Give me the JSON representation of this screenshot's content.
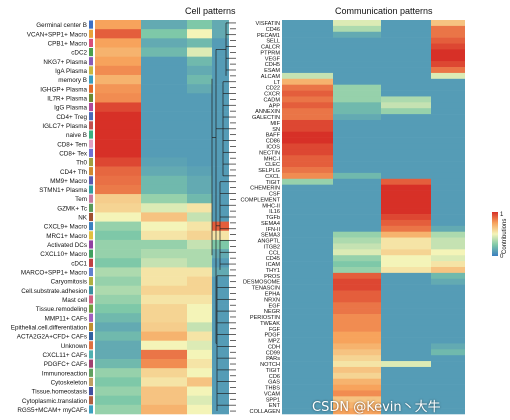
{
  "chart_data": [
    {
      "type": "heatmap",
      "title": "Cell patterns",
      "rows": [
        "Germinal center B",
        "VCAN+SPP1+ Macro",
        "CPB1+ Macro",
        "cDC2",
        "NKG7+ Plasma",
        "IgA Plasma",
        "memory B",
        "IGHGP+ Plasma",
        "IL7R+ Plasma",
        "IgG Plasma",
        "CD4+ Treg",
        "IGLC7+ Plasma",
        "naive B",
        "CD8+ Tem",
        "CD8+ Tex",
        "Th0",
        "CD4+ Tfh",
        "MM9+ Macro",
        "STMN1+ Plasma",
        "Tem",
        "GZMK+ Tc",
        "NK",
        "CXCL9+ Macro",
        "MRC1+ Macro",
        "Activated DCs",
        "CXCL10+ Macro",
        "cDC1",
        "MARCO+SPP1+ Macro",
        "Caryomitosis",
        "Cell.substrate.adhesion",
        "Mast cell",
        "Tissue.remodeling",
        "MMP11+ CAFs",
        "Epithelial.cell.differentiation",
        "ACTA2G2A+CFD+ CAFs",
        "Unknown",
        "CXCL11+ CAFs",
        "PDGFC+ CAFs",
        "Immunoreaction",
        "Cytoskeleton",
        "Tissue.homeostasis",
        "Cytoplasmic.translation",
        "RGS5+MCAM+ myCAFs"
      ],
      "row_colors": [
        "#3d6fc4",
        "#e8a23a",
        "#d94f7a",
        "#4aa04a",
        "#8a5ab8",
        "#c8b840",
        "#3a9fbf",
        "#e06a2a",
        "#6a8a30",
        "#b04a9a",
        "#4a6ab8",
        "#c05050",
        "#3ab080",
        "#e0a0c0",
        "#7070d0",
        "#a0a040",
        "#d08a30",
        "#5a5ab0",
        "#30a0a0",
        "#c87aa0",
        "#5a9a5a",
        "#a05030",
        "#3a80c0",
        "#e0c040",
        "#9040a0",
        "#40a060",
        "#c04040",
        "#6080d0",
        "#b0b040",
        "#3a90a0",
        "#d06080",
        "#70a040",
        "#a060c0",
        "#c09030",
        "#3060a0",
        "#e07040",
        "#50b0b0",
        "#a04070",
        "#60a060",
        "#c0a060",
        "#4050a0",
        "#b06040",
        "#3aa0c0"
      ],
      "patterns": 4,
      "values": [
        [
          0.75,
          0.15,
          0.25,
          0.15
        ],
        [
          0.9,
          0.25,
          0.5,
          0.15
        ],
        [
          0.75,
          0.15,
          0.2,
          0.1
        ],
        [
          0.7,
          0.2,
          0.45,
          0.1
        ],
        [
          0.75,
          0.1,
          0.2,
          0.1
        ],
        [
          0.8,
          0.1,
          0.15,
          0.1
        ],
        [
          0.7,
          0.1,
          0.2,
          0.1
        ],
        [
          0.78,
          0.1,
          0.15,
          0.1
        ],
        [
          0.8,
          0.1,
          0.1,
          0.1
        ],
        [
          0.95,
          0.1,
          0.1,
          0.1
        ],
        [
          1.0,
          0.1,
          0.1,
          0.1
        ],
        [
          1.0,
          0.1,
          0.1,
          0.1
        ],
        [
          1.0,
          0.1,
          0.1,
          0.1
        ],
        [
          1.0,
          0.1,
          0.1,
          0.1
        ],
        [
          1.0,
          0.1,
          0.1,
          0.1
        ],
        [
          0.95,
          0.12,
          0.1,
          0.1
        ],
        [
          0.88,
          0.15,
          0.12,
          0.1
        ],
        [
          0.86,
          0.2,
          0.15,
          0.1
        ],
        [
          0.84,
          0.2,
          0.15,
          0.1
        ],
        [
          0.62,
          0.3,
          0.2,
          0.1
        ],
        [
          0.6,
          0.45,
          0.55,
          0.1
        ],
        [
          0.5,
          0.65,
          0.4,
          0.1
        ],
        [
          0.3,
          0.5,
          0.55,
          0.9
        ],
        [
          0.25,
          0.55,
          0.6,
          0.55
        ],
        [
          0.3,
          0.3,
          0.4,
          0.25
        ],
        [
          0.3,
          0.35,
          0.35,
          0.15
        ],
        [
          0.25,
          0.4,
          0.35,
          0.1
        ],
        [
          0.35,
          0.55,
          0.55,
          0.15
        ],
        [
          0.3,
          0.55,
          0.6,
          0.1
        ],
        [
          0.35,
          0.6,
          0.6,
          0.1
        ],
        [
          0.3,
          0.55,
          0.55,
          0.1
        ],
        [
          0.25,
          0.6,
          0.5,
          0.1
        ],
        [
          0.2,
          0.6,
          0.5,
          0.1
        ],
        [
          0.15,
          0.62,
          0.4,
          0.1
        ],
        [
          0.2,
          0.7,
          0.55,
          0.1
        ],
        [
          0.15,
          0.5,
          0.45,
          0.1
        ],
        [
          0.15,
          0.85,
          0.5,
          0.1
        ],
        [
          0.2,
          0.8,
          0.55,
          0.1
        ],
        [
          0.3,
          0.6,
          0.5,
          0.1
        ],
        [
          0.25,
          0.55,
          0.65,
          0.1
        ],
        [
          0.3,
          0.65,
          0.5,
          0.1
        ],
        [
          0.25,
          0.65,
          0.45,
          0.1
        ],
        [
          0.3,
          0.7,
          0.5,
          0.1
        ]
      ]
    },
    {
      "type": "heatmap",
      "title": "Communication patterns",
      "rows": [
        "VISFATIN",
        "CD46",
        "PECAM1",
        "SELL",
        "CALCR",
        "PTPRM",
        "VEGF",
        "CDH5",
        "ESAM",
        "ALCAM",
        "LT",
        "CD22",
        "CXCR",
        "CADM",
        "APP",
        "ANNEXIN",
        "GALECTIN",
        "MIF",
        "SN",
        "BAFF",
        "CD86",
        "ICOS",
        "NECTIN",
        "MHC-I",
        "CLEC",
        "SELPLG",
        "CXCL",
        "TIGIT",
        "CHEMERIN",
        "CSF",
        "COMPLEMENT",
        "MHC-II",
        "IL16",
        "TGFb",
        "SEMA4",
        "IFN-II",
        "SEMA3",
        "ANGPTL",
        "ITGB2",
        "CCL",
        "CD45",
        "ICAM",
        "THY1",
        "PROS",
        "DESMOSOME",
        "TENASCIN",
        "EPHA",
        "NRXN",
        "EGF",
        "NEGR",
        "PERIOSTIN",
        "TWEAK",
        "FGF",
        "PDGF",
        "MPZ",
        "CDH",
        "CD99",
        "PARs",
        "NOTCH",
        "TIGIT",
        "CD6",
        "GAS",
        "THBS",
        "VCAM",
        "SPP1",
        "ENT",
        "COLLAGEN"
      ],
      "patterns": 4,
      "values": [
        [
          0.1,
          0.45,
          0.1,
          0.65
        ],
        [
          0.1,
          0.35,
          0.1,
          0.85
        ],
        [
          0.1,
          0.15,
          0.1,
          0.85
        ],
        [
          0.1,
          0.1,
          0.1,
          0.9
        ],
        [
          0.1,
          0.1,
          0.1,
          0.95
        ],
        [
          0.1,
          0.1,
          0.1,
          1.0
        ],
        [
          0.1,
          0.1,
          0.1,
          1.0
        ],
        [
          0.1,
          0.1,
          0.1,
          0.95
        ],
        [
          0.1,
          0.1,
          0.1,
          0.85
        ],
        [
          0.4,
          0.1,
          0.1,
          0.45
        ],
        [
          0.7,
          0.1,
          0.1,
          0.1
        ],
        [
          0.85,
          0.3,
          0.1,
          0.1
        ],
        [
          0.9,
          0.3,
          0.1,
          0.1
        ],
        [
          0.85,
          0.3,
          0.35,
          0.1
        ],
        [
          0.9,
          0.2,
          0.4,
          0.1
        ],
        [
          0.85,
          0.2,
          0.3,
          0.1
        ],
        [
          0.85,
          0.15,
          0.1,
          0.1
        ],
        [
          0.95,
          0.1,
          0.1,
          0.1
        ],
        [
          0.95,
          0.1,
          0.1,
          0.1
        ],
        [
          1.0,
          0.1,
          0.1,
          0.1
        ],
        [
          1.0,
          0.1,
          0.1,
          0.1
        ],
        [
          0.95,
          0.1,
          0.1,
          0.1
        ],
        [
          0.95,
          0.1,
          0.1,
          0.1
        ],
        [
          0.9,
          0.1,
          0.1,
          0.1
        ],
        [
          0.9,
          0.1,
          0.1,
          0.1
        ],
        [
          0.85,
          0.1,
          0.1,
          0.1
        ],
        [
          0.8,
          0.2,
          0.1,
          0.1
        ],
        [
          0.3,
          0.1,
          0.9,
          0.1
        ],
        [
          0.1,
          0.1,
          1.0,
          0.1
        ],
        [
          0.1,
          0.1,
          1.0,
          0.1
        ],
        [
          0.1,
          0.1,
          1.0,
          0.1
        ],
        [
          0.1,
          0.1,
          1.0,
          0.1
        ],
        [
          0.1,
          0.1,
          1.0,
          0.1
        ],
        [
          0.1,
          0.1,
          0.95,
          0.1
        ],
        [
          0.1,
          0.1,
          0.9,
          0.1
        ],
        [
          0.1,
          0.1,
          0.85,
          0.15
        ],
        [
          0.1,
          0.3,
          0.7,
          0.35
        ],
        [
          0.1,
          0.35,
          0.55,
          0.4
        ],
        [
          0.1,
          0.4,
          0.55,
          0.4
        ],
        [
          0.1,
          0.45,
          0.6,
          0.5
        ],
        [
          0.1,
          0.3,
          0.5,
          0.45
        ],
        [
          0.1,
          0.25,
          0.5,
          0.55
        ],
        [
          0.1,
          0.3,
          0.55,
          0.65
        ],
        [
          0.1,
          0.9,
          0.1,
          0.2
        ],
        [
          0.1,
          0.95,
          0.1,
          0.15
        ],
        [
          0.1,
          0.95,
          0.1,
          0.1
        ],
        [
          0.1,
          0.9,
          0.1,
          0.1
        ],
        [
          0.1,
          0.9,
          0.1,
          0.1
        ],
        [
          0.1,
          0.85,
          0.1,
          0.1
        ],
        [
          0.1,
          0.85,
          0.1,
          0.1
        ],
        [
          0.1,
          0.8,
          0.1,
          0.1
        ],
        [
          0.1,
          0.8,
          0.1,
          0.1
        ],
        [
          0.1,
          0.8,
          0.1,
          0.1
        ],
        [
          0.1,
          0.75,
          0.1,
          0.1
        ],
        [
          0.1,
          0.75,
          0.1,
          0.1
        ],
        [
          0.1,
          0.7,
          0.1,
          0.15
        ],
        [
          0.1,
          0.65,
          0.1,
          0.2
        ],
        [
          0.1,
          0.6,
          0.1,
          0.1
        ],
        [
          0.1,
          0.55,
          0.45,
          0.1
        ],
        [
          0.1,
          0.65,
          0.1,
          0.1
        ],
        [
          0.1,
          0.6,
          0.1,
          0.1
        ],
        [
          0.1,
          0.7,
          0.1,
          0.1
        ],
        [
          0.1,
          0.75,
          0.1,
          0.1
        ],
        [
          0.1,
          0.8,
          0.1,
          0.1
        ],
        [
          0.1,
          0.65,
          0.1,
          0.1
        ],
        [
          0.1,
          0.7,
          0.1,
          0.1
        ],
        [
          0.1,
          0.75,
          0.1,
          0.1
        ]
      ]
    }
  ],
  "legend": {
    "title": "Contributions",
    "min": 0,
    "max": 1,
    "colors": [
      "#3a7ec0",
      "#7ec8a8",
      "#f4f4b8",
      "#f7a35c",
      "#d73027"
    ]
  },
  "watermark": "CSDN @Kevin丶大牛"
}
